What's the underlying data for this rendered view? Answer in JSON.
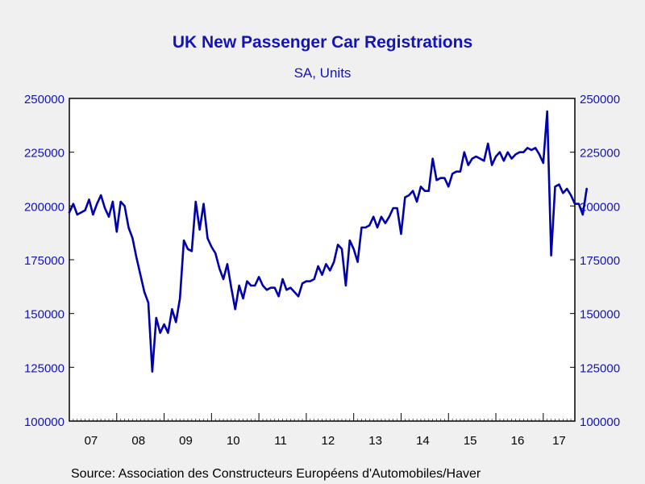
{
  "chart_data": {
    "type": "line",
    "title": "UK New Passenger Car Registrations",
    "subtitle": "SA, Units",
    "source": "Source:  Association des Constructeurs Européens d'Automobiles/Haver",
    "xlabel": "",
    "ylabel": "",
    "ylim": [
      100000,
      250000
    ],
    "yticks": [
      100000,
      125000,
      150000,
      175000,
      200000,
      225000,
      250000
    ],
    "ytick_labels": [
      "100000",
      "125000",
      "150000",
      "175000",
      "200000",
      "225000",
      "250000"
    ],
    "right_axis_mirrors_left": true,
    "xlim": [
      "2007-01",
      "2017-09"
    ],
    "xtick_labels": [
      "07",
      "08",
      "09",
      "10",
      "11",
      "12",
      "13",
      "14",
      "15",
      "16",
      "17"
    ],
    "grid": false,
    "legend": "none",
    "line_color": "#0000aa",
    "frequency": "monthly",
    "series": [
      {
        "x_start": "2007-01",
        "values": [
          197000,
          201000,
          196000,
          197000,
          198000,
          203000,
          196000,
          201000,
          205000,
          199000,
          195000,
          202000,
          188000,
          202000,
          200000,
          190000,
          185000,
          176000,
          168000,
          160000,
          155000,
          123000,
          148000,
          141000,
          145000,
          141000,
          152000,
          146000,
          157000,
          184000,
          180000,
          179000,
          202000,
          189000,
          201000,
          185000,
          181000,
          178000,
          171000,
          166000,
          173000,
          162000,
          152000,
          163000,
          157000,
          165000,
          163000,
          163000,
          167000,
          163000,
          161000,
          162000,
          162000,
          158000,
          166000,
          161000,
          162000,
          160000,
          158000,
          164000,
          165000,
          165000,
          166000,
          172000,
          168000,
          173000,
          170000,
          174000,
          182000,
          180000,
          163000,
          184000,
          180000,
          174000,
          190000,
          190000,
          191000,
          195000,
          190000,
          195000,
          192000,
          195000,
          199000,
          199000,
          187000,
          204000,
          205000,
          207000,
          202000,
          209000,
          207000,
          207000,
          222000,
          212000,
          213000,
          213000,
          209000,
          215000,
          216000,
          216000,
          225000,
          219000,
          222000,
          223000,
          222000,
          221000,
          229000,
          219000,
          223000,
          225000,
          221000,
          225000,
          222000,
          224000,
          225000,
          225000,
          227000,
          226000,
          227000,
          224000,
          220000,
          244000,
          177000,
          209000,
          210000,
          206000,
          208000,
          205000,
          201000,
          201000,
          196000,
          208000
        ]
      }
    ]
  }
}
